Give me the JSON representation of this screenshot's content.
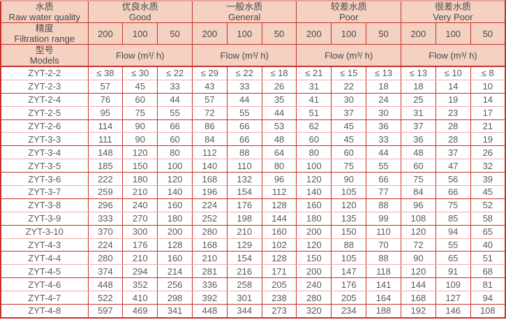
{
  "colors": {
    "border_red": "#c9302c",
    "border_light_pink": "#f0aba5",
    "outer_top_pink": "#e9a29c",
    "header_background": "#f4d1c1",
    "header_text": "#4a4a4a",
    "data_text": "#595959"
  },
  "chart_data": {
    "type": "table",
    "title": "",
    "header": {
      "raw_water_quality": {
        "zh": "水质",
        "en": "Raw water quality"
      },
      "quality_groups": [
        {
          "zh": "优良水质",
          "en": "Good"
        },
        {
          "zh": "一般水质",
          "en": "General"
        },
        {
          "zh": "较差水质",
          "en": "Poor"
        },
        {
          "zh": "很差水质",
          "en": "Very Poor"
        }
      ],
      "filtration_range": {
        "zh": "精度",
        "en": "Filtration range"
      },
      "micron_ratings": [
        "200",
        "100",
        "50"
      ],
      "models": {
        "zh": "型号",
        "en": "Models"
      },
      "flow_label": "Flow (m³/ h)"
    },
    "column_order": [
      "Good 200",
      "Good 100",
      "Good 50",
      "General 200",
      "General 100",
      "General 50",
      "Poor 200",
      "Poor 100",
      "Poor 50",
      "Very Poor 200",
      "Very Poor 100",
      "Very Poor 50"
    ],
    "rows": [
      {
        "model": "ZYT-2-2",
        "values": [
          "≤ 38",
          "≤ 30",
          "≤ 22",
          "≤ 29",
          "≤ 22",
          "≤ 18",
          "≤ 21",
          "≤ 15",
          "≤ 13",
          "≤ 13",
          "≤ 10",
          "≤ 8"
        ]
      },
      {
        "model": "ZYT-2-3",
        "values": [
          "57",
          "45",
          "33",
          "43",
          "33",
          "26",
          "31",
          "22",
          "18",
          "18",
          "14",
          "10"
        ]
      },
      {
        "model": "ZYT-2-4",
        "values": [
          "76",
          "60",
          "44",
          "57",
          "44",
          "35",
          "41",
          "30",
          "24",
          "25",
          "19",
          "14"
        ]
      },
      {
        "model": "ZYT-2-5",
        "values": [
          "95",
          "75",
          "55",
          "72",
          "55",
          "44",
          "51",
          "37",
          "30",
          "31",
          "23",
          "17"
        ]
      },
      {
        "model": "ZYT-2-6",
        "values": [
          "114",
          "90",
          "66",
          "86",
          "66",
          "53",
          "62",
          "45",
          "36",
          "37",
          "28",
          "21"
        ]
      },
      {
        "model": "ZYT-3-3",
        "values": [
          "111",
          "90",
          "60",
          "84",
          "66",
          "48",
          "60",
          "45",
          "33",
          "36",
          "28",
          "19"
        ]
      },
      {
        "model": "ZYT-3-4",
        "values": [
          "148",
          "120",
          "80",
          "112",
          "88",
          "64",
          "80",
          "60",
          "44",
          "48",
          "37",
          "26"
        ]
      },
      {
        "model": "ZYT-3-5",
        "values": [
          "185",
          "150",
          "100",
          "140",
          "110",
          "80",
          "100",
          "75",
          "55",
          "60",
          "47",
          "32"
        ]
      },
      {
        "model": "ZYT-3-6",
        "values": [
          "222",
          "180",
          "120",
          "168",
          "132",
          "96",
          "120",
          "90",
          "66",
          "75",
          "56",
          "39"
        ]
      },
      {
        "model": "ZYT-3-7",
        "values": [
          "259",
          "210",
          "140",
          "196",
          "154",
          "112",
          "140",
          "105",
          "77",
          "84",
          "66",
          "45"
        ]
      },
      {
        "model": "ZYT-3-8",
        "values": [
          "296",
          "240",
          "160",
          "224",
          "176",
          "128",
          "160",
          "120",
          "88",
          "96",
          "75",
          "52"
        ]
      },
      {
        "model": "ZYT-3-9",
        "values": [
          "333",
          "270",
          "180",
          "252",
          "198",
          "144",
          "180",
          "135",
          "99",
          "108",
          "85",
          "58"
        ]
      },
      {
        "model": "ZYT-3-10",
        "values": [
          "370",
          "300",
          "200",
          "280",
          "210",
          "160",
          "200",
          "150",
          "110",
          "120",
          "94",
          "65"
        ]
      },
      {
        "model": "ZYT-4-3",
        "values": [
          "224",
          "176",
          "128",
          "168",
          "129",
          "102",
          "120",
          "88",
          "70",
          "72",
          "55",
          "40"
        ]
      },
      {
        "model": "ZYT-4-4",
        "values": [
          "280",
          "210",
          "160",
          "210",
          "154",
          "128",
          "150",
          "105",
          "88",
          "90",
          "65",
          "51"
        ]
      },
      {
        "model": "ZYT-4-5",
        "values": [
          "374",
          "294",
          "214",
          "281",
          "216",
          "171",
          "200",
          "147",
          "118",
          "120",
          "91",
          "68"
        ]
      },
      {
        "model": "ZYT-4-6",
        "values": [
          "448",
          "352",
          "256",
          "336",
          "258",
          "205",
          "240",
          "176",
          "141",
          "144",
          "109",
          "81"
        ]
      },
      {
        "model": "ZYT-4-7",
        "values": [
          "522",
          "410",
          "298",
          "392",
          "301",
          "238",
          "280",
          "205",
          "164",
          "168",
          "127",
          "94"
        ]
      },
      {
        "model": "ZYT-4-8",
        "values": [
          "597",
          "469",
          "341",
          "448",
          "344",
          "273",
          "320",
          "234",
          "188",
          "192",
          "146",
          "108"
        ]
      }
    ]
  }
}
